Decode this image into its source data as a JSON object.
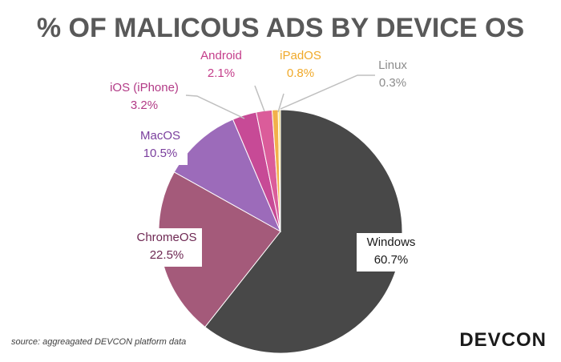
{
  "chart_data": {
    "type": "pie",
    "title": "% OF MALICOUS ADS BY DEVICE OS",
    "slices": [
      {
        "name": "Windows",
        "value": 60.7,
        "label": "60.7%",
        "color": "#484848",
        "text_color": "#1a1a1a",
        "start_deg": 0
      },
      {
        "name": "ChromeOS",
        "value": 22.5,
        "label": "22.5%",
        "color": "#A45A7A",
        "text_color": "#6E2853"
      },
      {
        "name": "MacOS",
        "value": 10.5,
        "label": "10.5%",
        "color": "#9C6BBA",
        "text_color": "#7A3E9D"
      },
      {
        "name": "iOS (iPhone)",
        "value": 3.2,
        "label": "3.2%",
        "color": "#C74A96",
        "text_color": "#B23A86"
      },
      {
        "name": "Android",
        "value": 2.1,
        "label": "2.1%",
        "color": "#DB5C9A",
        "text_color": "#C43D8A"
      },
      {
        "name": "iPadOS",
        "value": 0.8,
        "label": "0.8%",
        "color": "#F2B04A",
        "text_color": "#F0A929"
      },
      {
        "name": "Linux",
        "value": 0.3,
        "label": "0.3%",
        "color": "#F7E07A",
        "text_color": "#8C8C8C"
      }
    ]
  },
  "footer": {
    "source": "source: aggreagated DEVCON platform data",
    "logo": "DEVCON"
  }
}
